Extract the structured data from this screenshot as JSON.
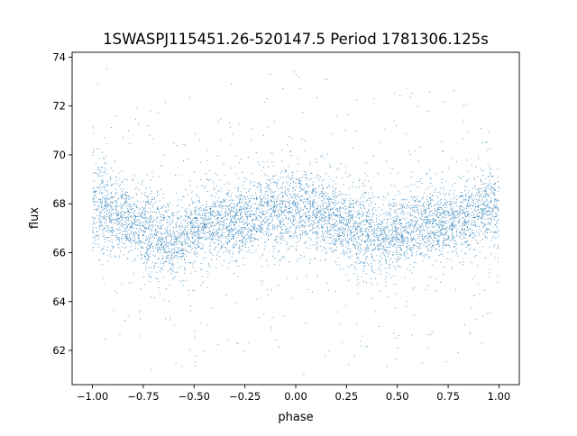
{
  "chart_data": {
    "type": "scatter",
    "title": "1SWASPJ115451.26-520147.5 Period 1781306.125s",
    "xlabel": "phase",
    "ylabel": "flux",
    "xlim": [
      -1.1,
      1.1
    ],
    "ylim": [
      60.6,
      74.2
    ],
    "x_ticks": [
      -1.0,
      -0.75,
      -0.5,
      -0.25,
      0.0,
      0.25,
      0.5,
      0.75,
      1.0
    ],
    "x_tick_labels": [
      "−1.00",
      "−0.75",
      "−0.50",
      "−0.25",
      "0.00",
      "0.25",
      "0.50",
      "0.75",
      "1.00"
    ],
    "y_ticks": [
      62,
      64,
      66,
      68,
      70,
      72,
      74
    ],
    "y_tick_labels": [
      "62",
      "64",
      "66",
      "68",
      "70",
      "72",
      "74"
    ],
    "grid": false,
    "legend": "none",
    "marker_color": "#1f77b4",
    "series": [
      {
        "envelope": [
          {
            "x": -1.0,
            "y": 67.8,
            "spread": 1.4
          },
          {
            "x": -0.95,
            "y": 67.9,
            "spread": 1.3
          },
          {
            "x": -0.9,
            "y": 67.6,
            "spread": 1.2
          },
          {
            "x": -0.85,
            "y": 67.4,
            "spread": 1.1
          },
          {
            "x": -0.8,
            "y": 67.2,
            "spread": 1.1
          },
          {
            "x": -0.75,
            "y": 67.0,
            "spread": 1.2
          },
          {
            "x": -0.7,
            "y": 66.7,
            "spread": 1.3
          },
          {
            "x": -0.65,
            "y": 66.6,
            "spread": 1.1
          },
          {
            "x": -0.6,
            "y": 66.5,
            "spread": 1.0
          },
          {
            "x": -0.55,
            "y": 66.6,
            "spread": 1.0
          },
          {
            "x": -0.5,
            "y": 66.9,
            "spread": 1.0
          },
          {
            "x": -0.45,
            "y": 67.1,
            "spread": 1.0
          },
          {
            "x": -0.4,
            "y": 67.2,
            "spread": 1.0
          },
          {
            "x": -0.35,
            "y": 67.2,
            "spread": 1.0
          },
          {
            "x": -0.3,
            "y": 67.3,
            "spread": 1.0
          },
          {
            "x": -0.25,
            "y": 67.3,
            "spread": 1.0
          },
          {
            "x": -0.2,
            "y": 67.4,
            "spread": 1.0
          },
          {
            "x": -0.15,
            "y": 67.7,
            "spread": 1.0
          },
          {
            "x": -0.1,
            "y": 67.8,
            "spread": 1.0
          },
          {
            "x": -0.05,
            "y": 67.8,
            "spread": 1.0
          },
          {
            "x": 0.0,
            "y": 67.8,
            "spread": 1.1
          },
          {
            "x": 0.05,
            "y": 67.8,
            "spread": 1.3
          },
          {
            "x": 0.1,
            "y": 67.6,
            "spread": 1.1
          },
          {
            "x": 0.15,
            "y": 67.5,
            "spread": 1.0
          },
          {
            "x": 0.2,
            "y": 67.4,
            "spread": 1.0
          },
          {
            "x": 0.25,
            "y": 67.2,
            "spread": 1.1
          },
          {
            "x": 0.3,
            "y": 67.0,
            "spread": 1.2
          },
          {
            "x": 0.35,
            "y": 66.8,
            "spread": 1.2
          },
          {
            "x": 0.4,
            "y": 66.6,
            "spread": 1.0
          },
          {
            "x": 0.45,
            "y": 66.6,
            "spread": 1.0
          },
          {
            "x": 0.5,
            "y": 66.8,
            "spread": 1.0
          },
          {
            "x": 0.55,
            "y": 67.0,
            "spread": 1.0
          },
          {
            "x": 0.6,
            "y": 67.1,
            "spread": 1.0
          },
          {
            "x": 0.65,
            "y": 67.2,
            "spread": 1.0
          },
          {
            "x": 0.7,
            "y": 67.2,
            "spread": 1.0
          },
          {
            "x": 0.75,
            "y": 67.2,
            "spread": 1.0
          },
          {
            "x": 0.8,
            "y": 67.3,
            "spread": 1.0
          },
          {
            "x": 0.85,
            "y": 67.6,
            "spread": 1.0
          },
          {
            "x": 0.9,
            "y": 67.8,
            "spread": 1.0
          },
          {
            "x": 0.95,
            "y": 67.8,
            "spread": 1.1
          },
          {
            "x": 1.0,
            "y": 67.8,
            "spread": 1.3
          }
        ]
      }
    ]
  }
}
